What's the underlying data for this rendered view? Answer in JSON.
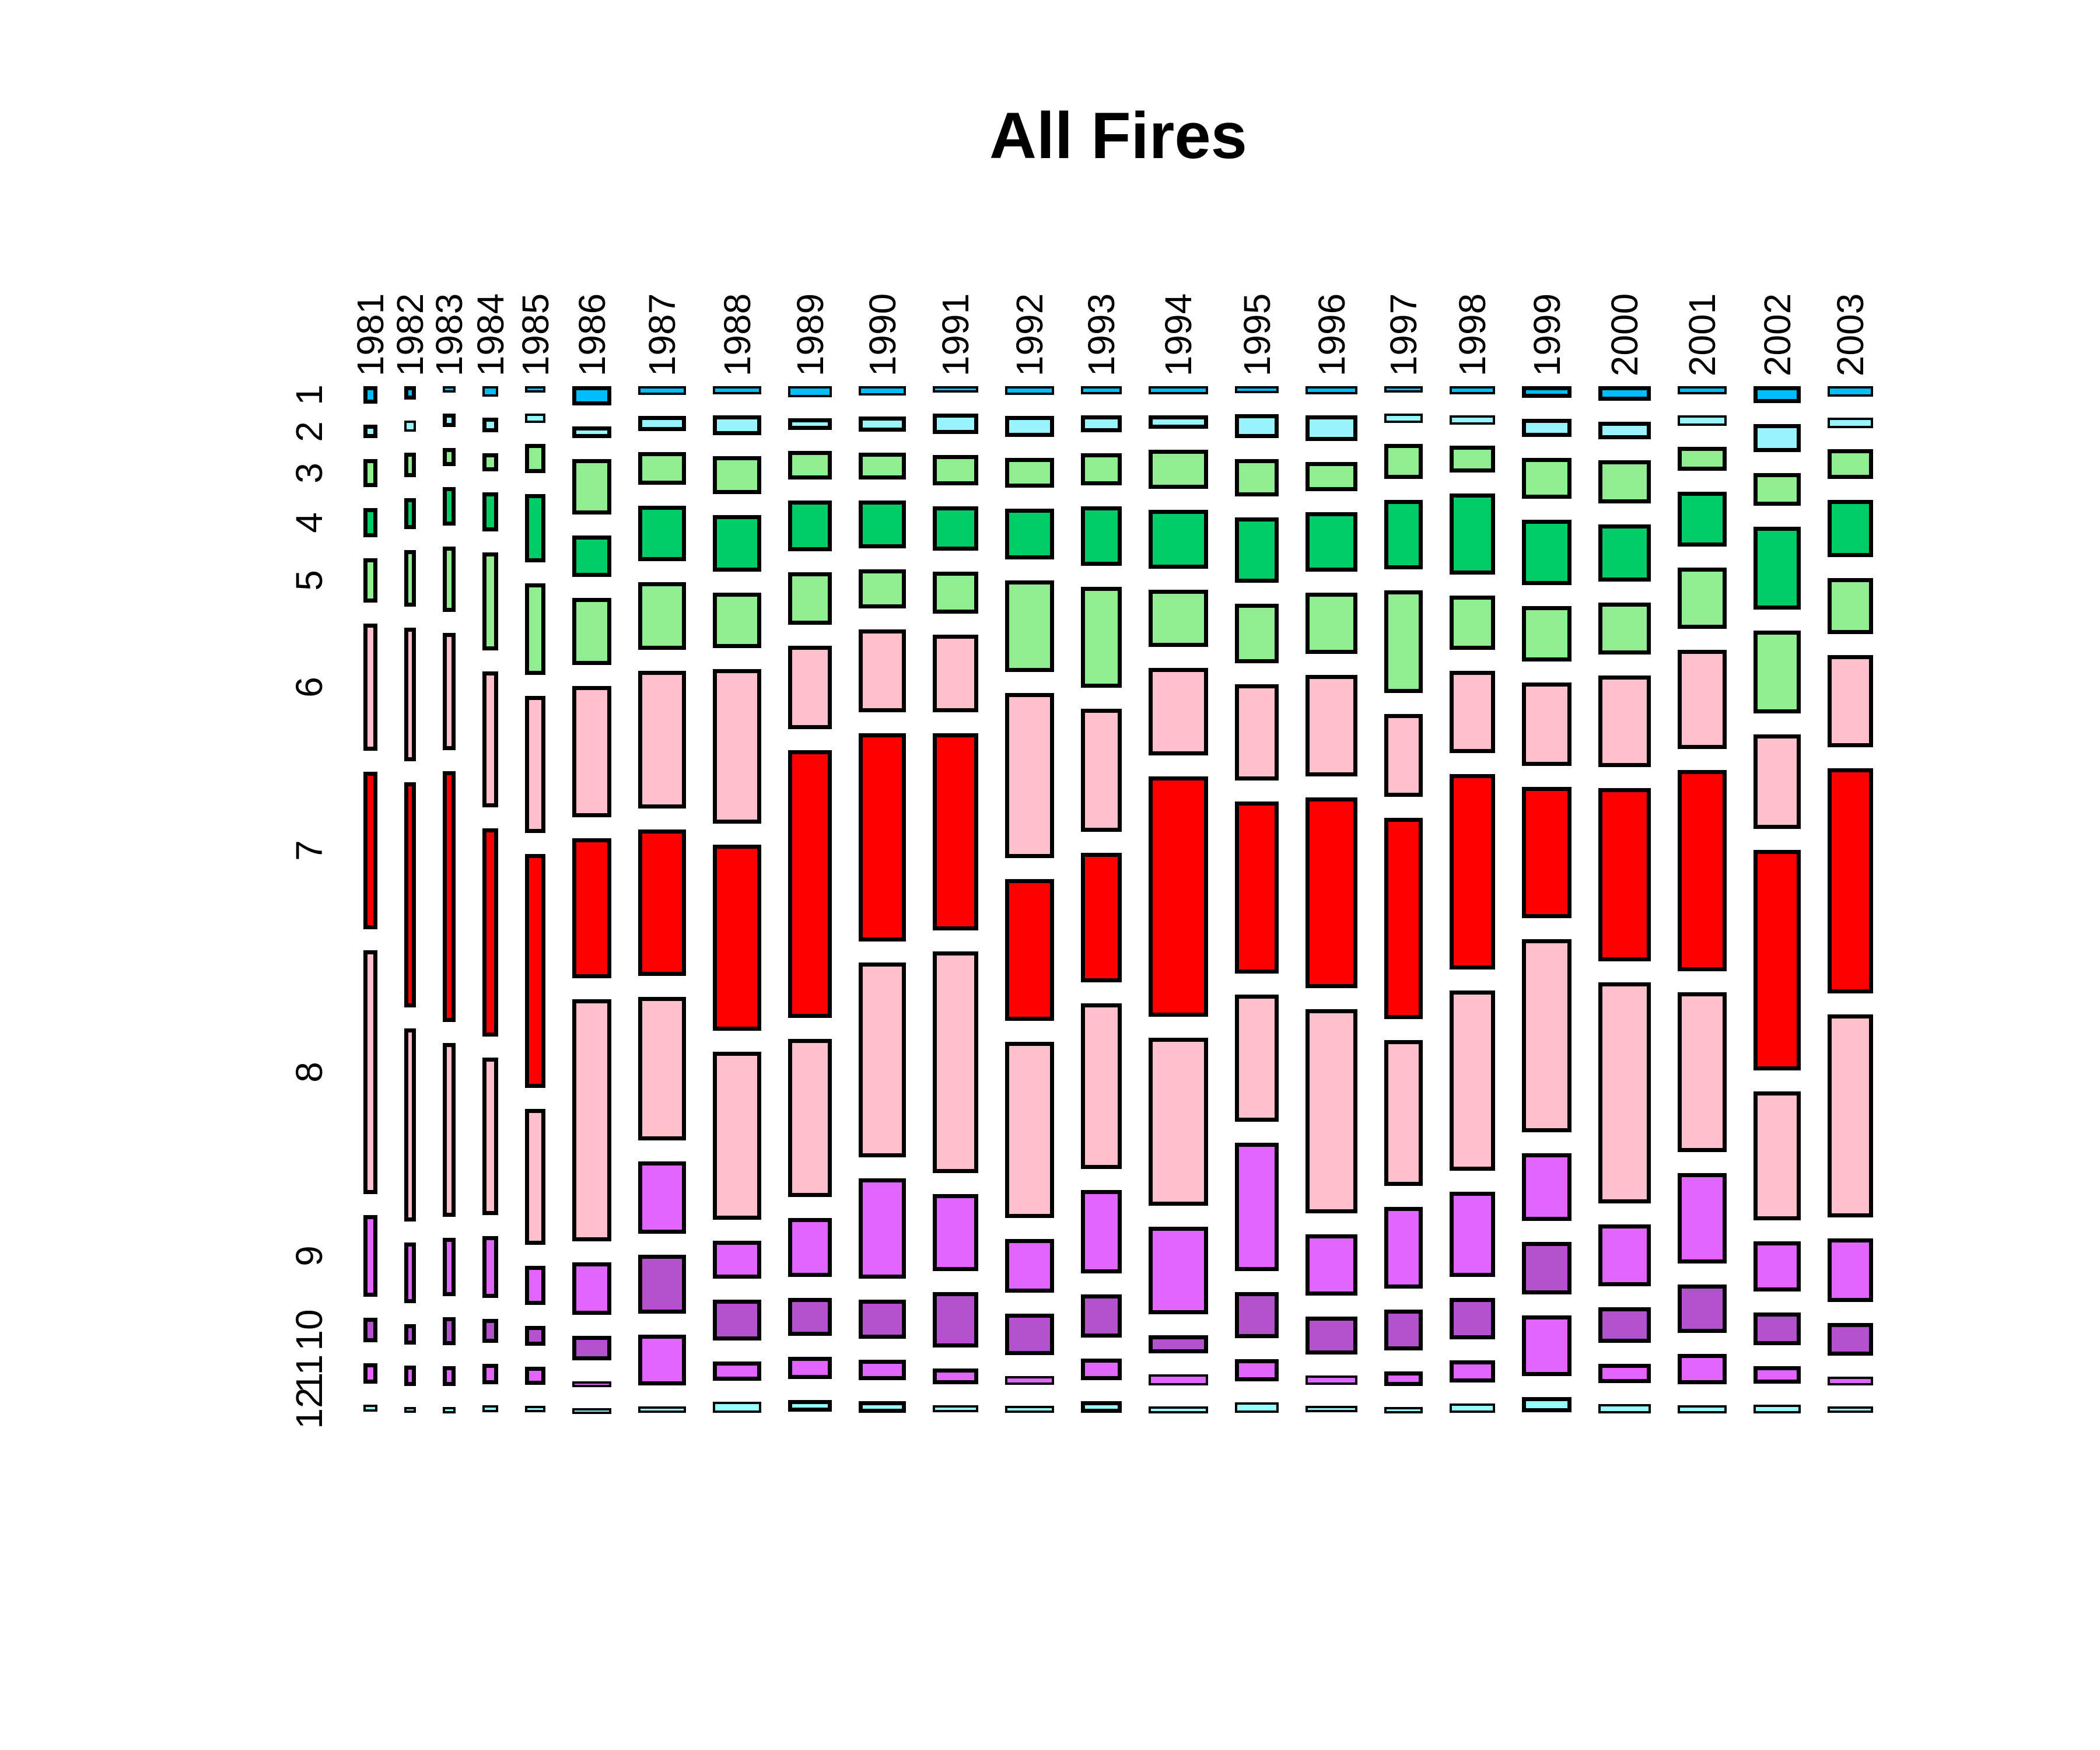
{
  "title": "All Fires",
  "chart_data": {
    "type": "mosaic",
    "title": "All Fires",
    "description": "Mosaic / spineplot: column width proportional to yearly fire total, cell height proportional to that month's share of the year's fires. Months 1-12 top to bottom.",
    "x_categories": [
      "1981",
      "1982",
      "1983",
      "1984",
      "1985",
      "1986",
      "1987",
      "1988",
      "1989",
      "1990",
      "1991",
      "1992",
      "1993",
      "1994",
      "1995",
      "1996",
      "1997",
      "1998",
      "1999",
      "2000",
      "2001",
      "2002",
      "2003"
    ],
    "row_categories": [
      "1",
      "2",
      "3",
      "4",
      "5",
      "6",
      "7",
      "8",
      "9",
      "10",
      "11",
      "12"
    ],
    "legend": "none",
    "grid": false,
    "cell_colors_by_month": [
      "#00BFFF",
      "#98F5FF",
      "#90EE90",
      "#00CD66",
      "#90EE90",
      "#FFC0CB",
      "#FF0000",
      "#FFC0CB",
      "#E066FF",
      "#B452CD",
      "#E066FF",
      "#97FFFF"
    ],
    "border_color": "#000000",
    "columns": [
      {
        "year": "1981",
        "weight": 24,
        "shares": [
          2.2,
          1.7,
          3.5,
          3.7,
          5.6,
          16.0,
          19.8,
          30.7,
          10.3,
          3.1,
          2.6,
          0.9
        ]
      },
      {
        "year": "1982",
        "weight": 20,
        "shares": [
          1.7,
          1.4,
          3.1,
          3.9,
          7.1,
          16.8,
          28.3,
          24.3,
          7.6,
          2.6,
          2.6,
          0.6
        ]
      },
      {
        "year": "1983",
        "weight": 22,
        "shares": [
          0.8,
          1.7,
          2.3,
          4.8,
          8.2,
          14.7,
          31.5,
          21.8,
          7.3,
          3.5,
          2.5,
          0.8
        ]
      },
      {
        "year": "1984",
        "weight": 27,
        "shares": [
          1.3,
          1.8,
          2.3,
          4.9,
          12.3,
          17.1,
          26.2,
          19.8,
          7.8,
          3.0,
          2.6,
          0.9
        ]
      },
      {
        "year": "1985",
        "weight": 35,
        "shares": [
          0.8,
          1.2,
          3.7,
          8.6,
          11.5,
          17.2,
          29.4,
          17.1,
          4.9,
          2.5,
          2.3,
          0.8
        ]
      },
      {
        "year": "1986",
        "weight": 67,
        "shares": [
          2.4,
          1.5,
          7.0,
          5.2,
          8.4,
          16.5,
          17.6,
          30.4,
          6.6,
          3.1,
          0.7,
          0.6
        ]
      },
      {
        "year": "1987",
        "weight": 82,
        "shares": [
          1.1,
          1.9,
          4.1,
          7.0,
          8.5,
          17.3,
          18.4,
          18.0,
          9.1,
          7.4,
          6.4,
          0.8
        ]
      },
      {
        "year": "1988",
        "weight": 83,
        "shares": [
          1.0,
          2.5,
          4.8,
          7.1,
          7.0,
          19.4,
          23.4,
          21.1,
          4.8,
          5.1,
          2.4,
          1.4
        ]
      },
      {
        "year": "1989",
        "weight": 75,
        "shares": [
          1.4,
          1.5,
          3.6,
          6.4,
          6.6,
          10.5,
          33.7,
          19.9,
          7.4,
          4.8,
          2.8,
          1.5
        ]
      },
      {
        "year": "1990",
        "weight": 81,
        "shares": [
          1.2,
          1.9,
          3.4,
          6.0,
          4.9,
          10.4,
          26.2,
          24.5,
          12.6,
          4.9,
          2.6,
          1.5
        ]
      },
      {
        "year": "1991",
        "weight": 78,
        "shares": [
          0.8,
          2.6,
          3.8,
          5.6,
          5.3,
          9.8,
          24.8,
          27.9,
          9.7,
          7.0,
          2.0,
          0.9
        ]
      },
      {
        "year": "1992",
        "weight": 84,
        "shares": [
          1.1,
          2.6,
          3.7,
          6.4,
          11.5,
          20.7,
          17.8,
          22.1,
          6.7,
          5.2,
          1.1,
          0.9
        ]
      },
      {
        "year": "1993",
        "weight": 70,
        "shares": [
          1.0,
          2.1,
          4.0,
          7.5,
          12.7,
          15.5,
          16.3,
          20.8,
          10.5,
          5.4,
          2.7,
          1.5
        ]
      },
      {
        "year": "1994",
        "weight": 102,
        "shares": [
          1.0,
          1.7,
          4.9,
          7.4,
          7.2,
          11.0,
          30.2,
          21.1,
          11.0,
          2.3,
          1.4,
          0.9
        ]
      },
      {
        "year": "1995",
        "weight": 75,
        "shares": [
          0.9,
          3.0,
          4.7,
          8.2,
          7.5,
          12.1,
          21.6,
          16.0,
          16.1,
          5.8,
          2.8,
          1.3
        ]
      },
      {
        "year": "1996",
        "weight": 89,
        "shares": [
          1.0,
          3.2,
          3.7,
          7.5,
          7.7,
          12.8,
          24.0,
          25.7,
          7.7,
          4.8,
          1.2,
          0.8
        ]
      },
      {
        "year": "1997",
        "weight": 66,
        "shares": [
          0.8,
          1.2,
          4.4,
          8.7,
          12.9,
          10.4,
          25.3,
          18.3,
          10.3,
          5.1,
          1.8,
          0.8
        ]
      },
      {
        "year": "1998",
        "weight": 78,
        "shares": [
          1.0,
          1.2,
          3.4,
          10.2,
          6.8,
          10.3,
          24.5,
          22.6,
          10.7,
          5.2,
          2.8,
          1.2
        ]
      },
      {
        "year": "1999",
        "weight": 85,
        "shares": [
          1.5,
          2.3,
          5.1,
          8.2,
          7.0,
          10.5,
          16.5,
          24.3,
          8.5,
          6.6,
          7.6,
          1.9
        ]
      },
      {
        "year": "2000",
        "weight": 90,
        "shares": [
          1.8,
          2.2,
          5.4,
          7.2,
          6.5,
          11.5,
          21.8,
          27.8,
          7.8,
          4.5,
          2.4,
          1.2
        ]
      },
      {
        "year": "2001",
        "weight": 84,
        "shares": [
          1.0,
          1.3,
          3.0,
          6.9,
          7.7,
          12.5,
          25.3,
          20.1,
          11.4,
          6.1,
          3.8,
          1.0
        ]
      },
      {
        "year": "2002",
        "weight": 81,
        "shares": [
          2.1,
          3.5,
          4.1,
          10.4,
          10.4,
          11.9,
          27.7,
          16.2,
          6.3,
          4.1,
          2.2,
          1.1
        ]
      },
      {
        "year": "2003",
        "weight": 78,
        "shares": [
          1.3,
          1.3,
          3.7,
          7.2,
          7.0,
          11.6,
          28.3,
          25.5,
          8.0,
          4.1,
          1.1,
          0.8
        ]
      }
    ]
  }
}
